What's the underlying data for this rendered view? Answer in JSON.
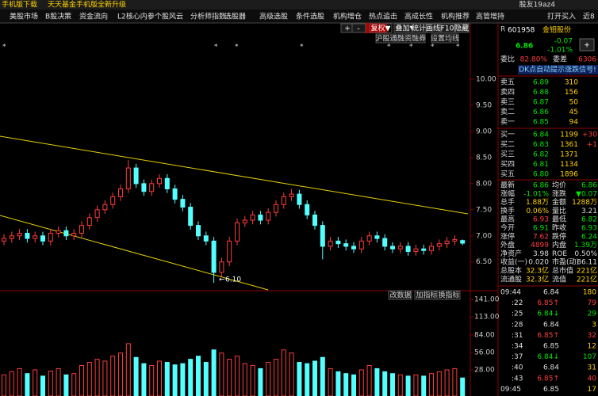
{
  "top_bar": {
    "links": [
      "手机版下载",
      "天天基金手机版全新升级"
    ],
    "user": "股友19az4"
  },
  "menu": {
    "items": [
      "美股市场",
      "B股决策",
      "资金流向",
      "L2核心内参",
      "个股风云",
      "分析师指数",
      "选股器",
      "高级选股",
      "条件选股",
      "机构增仓",
      "热点追击",
      "高成长性",
      "机构推荐",
      "高管增持"
    ],
    "right": [
      "打开买入",
      "近8"
    ]
  },
  "toolbar": {
    "buttons": [
      "+",
      "-",
      "复权▼",
      "叠加▼",
      "统计",
      "画线",
      "F10",
      "隐藏"
    ],
    "sub": [
      "沪股通",
      "融资融券",
      "设置均线"
    ]
  },
  "chart_data": {
    "type": "candlestick",
    "open": [
      6.9,
      6.95,
      7.0,
      7.05,
      6.95,
      7.0,
      6.9,
      7.05,
      7.1,
      7.0,
      7.05,
      7.2,
      7.35,
      7.5,
      7.6,
      7.75,
      7.9,
      8.3,
      8.0,
      7.85,
      8.0,
      8.1,
      7.9,
      7.7,
      7.55,
      7.2,
      7.0,
      6.9,
      6.3,
      6.5,
      6.9,
      7.25,
      7.3,
      7.4,
      7.3,
      7.45,
      7.6,
      7.75,
      7.8,
      7.6,
      7.4,
      7.2,
      6.8,
      6.9,
      6.85,
      6.8,
      6.75,
      6.9,
      7.0,
      6.95,
      6.8,
      6.75,
      6.8,
      6.7,
      6.75,
      6.72,
      6.8,
      6.85,
      6.9,
      6.91
    ],
    "high": [
      7.03,
      7.08,
      7.13,
      7.13,
      7.08,
      7.08,
      7.13,
      7.18,
      7.18,
      7.13,
      7.28,
      7.43,
      7.58,
      7.68,
      7.83,
      7.98,
      8.45,
      8.38,
      8.08,
      8.08,
      8.18,
      8.18,
      7.98,
      7.78,
      7.63,
      7.28,
      7.08,
      6.98,
      6.58,
      6.98,
      7.33,
      7.38,
      7.48,
      7.48,
      7.53,
      7.68,
      7.83,
      7.9,
      7.88,
      7.68,
      7.48,
      7.28,
      6.98,
      6.98,
      6.93,
      6.88,
      6.98,
      7.08,
      7.08,
      7.03,
      6.88,
      6.88,
      6.88,
      6.83,
      6.83,
      6.88,
      6.93,
      6.98,
      7.01,
      6.93
    ],
    "low": [
      6.82,
      6.87,
      6.92,
      6.87,
      6.87,
      6.82,
      6.82,
      6.97,
      6.92,
      6.92,
      6.97,
      7.12,
      7.27,
      7.42,
      7.52,
      7.67,
      7.82,
      7.92,
      7.77,
      7.77,
      7.92,
      7.82,
      7.62,
      7.47,
      7.12,
      6.92,
      6.82,
      6.1,
      6.22,
      6.42,
      6.82,
      7.17,
      7.22,
      7.22,
      7.22,
      7.37,
      7.52,
      7.67,
      7.52,
      7.32,
      7.12,
      6.55,
      6.72,
      6.77,
      6.72,
      6.67,
      6.67,
      6.82,
      6.87,
      6.72,
      6.67,
      6.67,
      6.62,
      6.62,
      6.64,
      6.64,
      6.72,
      6.77,
      6.82,
      6.82
    ],
    "close": [
      6.95,
      7.0,
      7.05,
      6.95,
      7.0,
      6.9,
      7.05,
      7.1,
      7.0,
      7.05,
      7.2,
      7.35,
      7.5,
      7.6,
      7.75,
      7.9,
      8.3,
      8.0,
      7.85,
      8.0,
      8.1,
      7.9,
      7.7,
      7.55,
      7.2,
      7.0,
      6.9,
      6.3,
      6.5,
      6.9,
      7.25,
      7.3,
      7.4,
      7.3,
      7.45,
      7.6,
      7.75,
      7.8,
      7.6,
      7.4,
      7.2,
      6.8,
      6.9,
      6.85,
      6.8,
      6.75,
      6.9,
      7.0,
      6.95,
      6.8,
      6.75,
      6.8,
      6.7,
      6.75,
      6.72,
      6.8,
      6.85,
      6.9,
      6.93,
      6.86
    ],
    "volume": [
      20,
      25,
      30,
      22,
      28,
      18,
      26,
      30,
      20,
      22,
      35,
      40,
      45,
      42,
      50,
      55,
      70,
      48,
      38,
      35,
      42,
      40,
      36,
      38,
      45,
      50,
      40,
      60,
      55,
      45,
      50,
      38,
      35,
      30,
      40,
      45,
      60,
      55,
      40,
      38,
      42,
      48,
      30,
      25,
      22,
      20,
      28,
      35,
      30,
      25,
      22,
      20,
      18,
      20,
      18,
      22,
      25,
      28,
      30,
      15
    ],
    "ylim": [
      5.95,
      10.85
    ],
    "yticks": [
      {
        "value": 10,
        "label": "10.00"
      },
      {
        "value": 9.5,
        "label": "9.50"
      },
      {
        "value": 9,
        "label": "9.00"
      },
      {
        "value": 8.5,
        "label": "8.50"
      },
      {
        "value": 8,
        "label": "8.00"
      },
      {
        "value": 7.5,
        "label": "7.50"
      },
      {
        "value": 7,
        "label": "7.00"
      },
      {
        "value": 6.5,
        "label": "6.50"
      }
    ],
    "y2lim": [
      0,
      150
    ],
    "y2ticks": [
      {
        "value": 141,
        "label": "141.00"
      },
      {
        "value": 113,
        "label": "113.00"
      },
      {
        "value": 84,
        "label": "84.00"
      },
      {
        "value": 56,
        "label": "56.00"
      },
      {
        "value": 28,
        "label": "28.00"
      }
    ],
    "low_label": "6.10",
    "volume_buttons": [
      "改数据",
      "加指标",
      "换指标"
    ],
    "up_color": "#ff3c3c",
    "down_color": "#54ffff"
  },
  "quote": {
    "flag": "R",
    "code": "601958",
    "name": "金钼股份",
    "price": "6.86",
    "change": "-0.07",
    "change_pct": "-1.01%",
    "ratio_label": "委比",
    "ratio": "82.80%",
    "diff_label": "委差",
    "diff": "6306",
    "signal": "DK点自动提示涨跌信号!",
    "asks": [
      [
        "卖五",
        "6.89",
        "310"
      ],
      [
        "卖四",
        "6.88",
        "156"
      ],
      [
        "卖三",
        "6.87",
        "50"
      ],
      [
        "卖二",
        "6.86",
        "45"
      ],
      [
        "卖一",
        "6.85",
        "94"
      ]
    ],
    "bids": [
      [
        "买一",
        "6.84",
        "1199",
        "+30"
      ],
      [
        "买二",
        "6.83",
        "1361",
        "+1"
      ],
      [
        "买三",
        "6.82",
        "1371"
      ],
      [
        "买四",
        "6.81",
        "1134"
      ],
      [
        "买五",
        "6.80",
        "1896"
      ]
    ],
    "stats": [
      [
        "最新",
        "6.86",
        "均价",
        "6.86"
      ],
      [
        "涨幅",
        "-1.01%",
        "涨跌",
        "▼0.07"
      ],
      [
        "总手",
        "1.88万",
        "金额",
        "1288万"
      ],
      [
        "换手",
        "0.06%",
        "量比",
        "3.21"
      ],
      [
        "最高",
        "6.93",
        "最低",
        "6.82"
      ],
      [
        "今开",
        "6.91",
        "昨收",
        "6.93"
      ],
      [
        "涨停",
        "7.62",
        "跌停",
        "6.24"
      ],
      [
        "外盘",
        "4899",
        "内盘",
        "1.39万"
      ],
      [
        "净资产",
        "3.98",
        "ROE",
        "0.50%"
      ],
      [
        "收益(一)",
        "0.020",
        "市盈(动)",
        "86.11"
      ],
      [
        "总股本",
        "32.3亿",
        "总市值",
        "221亿"
      ],
      [
        "流通股",
        "32.3亿",
        "流值",
        "221亿"
      ]
    ],
    "ticks": [
      [
        "09:44",
        "6.84",
        "180"
      ],
      [
        ":22",
        "6.85↑",
        "79"
      ],
      [
        ":25",
        "6.84↓",
        "29"
      ],
      [
        ":28",
        "6.84",
        "3"
      ],
      [
        ":31",
        "6.85↑",
        "32"
      ],
      [
        ":34",
        "6.85",
        "12"
      ],
      [
        ":37",
        "6.84↓",
        "107"
      ],
      [
        ":40",
        "6.84",
        "31"
      ],
      [
        ":43",
        "6.85↑",
        "40"
      ],
      [
        "09:45",
        "6.85",
        "17"
      ]
    ]
  }
}
